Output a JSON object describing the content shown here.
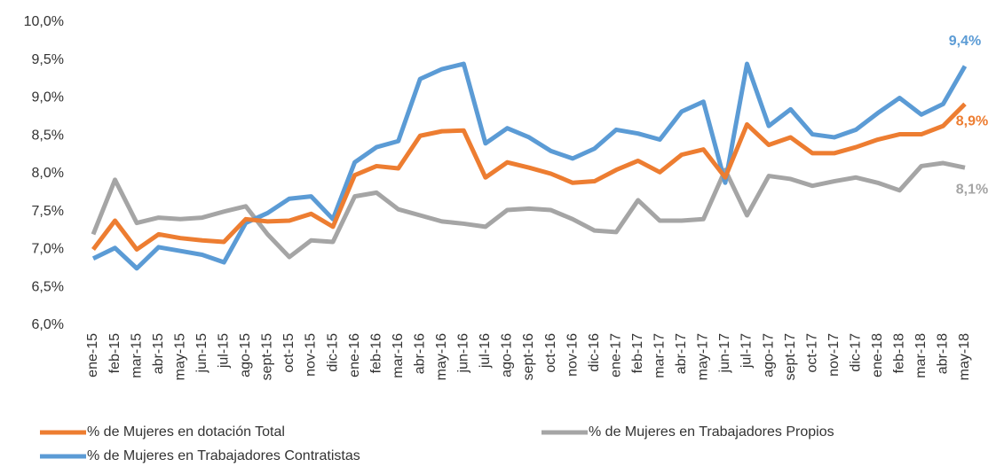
{
  "chart_data": {
    "type": "line",
    "categories": [
      "ene-15",
      "feb-15",
      "mar-15",
      "abr-15",
      "may-15",
      "jun-15",
      "jul-15",
      "ago-15",
      "sept-15",
      "oct-15",
      "nov-15",
      "dic-15",
      "ene-16",
      "feb-16",
      "mar-16",
      "abr-16",
      "may-16",
      "jun-16",
      "jul-16",
      "ago-16",
      "sept-16",
      "oct-16",
      "nov-16",
      "dic-16",
      "ene-17",
      "feb-17",
      "mar-17",
      "abr-17",
      "may-17",
      "jun-17",
      "jul-17",
      "ago-17",
      "sept-17",
      "oct-17",
      "nov-17",
      "dic-17",
      "ene-18",
      "feb-18",
      "mar-18",
      "abr-18",
      "may-18"
    ],
    "series": [
      {
        "name": "% de Mujeres en Trabajadores Propios",
        "color": "#a5a5a5",
        "values": [
          7.2,
          7.92,
          7.35,
          7.42,
          7.4,
          7.42,
          7.5,
          7.57,
          7.2,
          6.9,
          7.12,
          7.1,
          7.7,
          7.75,
          7.53,
          7.45,
          7.37,
          7.34,
          7.3,
          7.52,
          7.54,
          7.52,
          7.4,
          7.25,
          7.23,
          7.65,
          7.38,
          7.38,
          7.4,
          8.05,
          7.45,
          7.97,
          7.93,
          7.84,
          7.9,
          7.95,
          7.88,
          7.78,
          8.1,
          8.14,
          8.08
        ],
        "value_labels": [
          null,
          null,
          null,
          null,
          null,
          null,
          null,
          null,
          null,
          null,
          null,
          null,
          null,
          null,
          null,
          null,
          null,
          null,
          null,
          null,
          null,
          null,
          null,
          null,
          null,
          null,
          null,
          null,
          null,
          null,
          null,
          null,
          null,
          null,
          null,
          null,
          null,
          null,
          null,
          null,
          "8,1%"
        ]
      },
      {
        "name": "% de Mujeres en Trabajadores Contratistas",
        "color": "#5b9bd5",
        "values": [
          6.88,
          7.02,
          6.75,
          7.03,
          6.98,
          6.93,
          6.83,
          7.35,
          7.48,
          7.67,
          7.7,
          7.4,
          8.15,
          8.35,
          8.43,
          9.25,
          9.38,
          9.45,
          8.4,
          8.6,
          8.48,
          8.3,
          8.2,
          8.33,
          8.58,
          8.53,
          8.45,
          8.82,
          8.95,
          7.88,
          9.45,
          8.63,
          8.85,
          8.52,
          8.48,
          8.58,
          8.8,
          9.0,
          8.78,
          8.92,
          9.42
        ],
        "value_labels": [
          null,
          null,
          null,
          null,
          null,
          null,
          null,
          null,
          null,
          null,
          null,
          null,
          null,
          null,
          null,
          null,
          null,
          null,
          null,
          null,
          null,
          null,
          null,
          null,
          null,
          null,
          null,
          null,
          null,
          null,
          null,
          null,
          null,
          null,
          null,
          null,
          null,
          null,
          null,
          null,
          "9,4%"
        ]
      },
      {
        "name": "% de Mujeres en dotación Total",
        "color": "#ed7d31",
        "values": [
          7.0,
          7.38,
          7.0,
          7.2,
          7.15,
          7.12,
          7.1,
          7.4,
          7.37,
          7.38,
          7.47,
          7.3,
          7.98,
          8.1,
          8.07,
          8.5,
          8.56,
          8.57,
          7.95,
          8.15,
          8.08,
          8.0,
          7.88,
          7.9,
          8.05,
          8.17,
          8.02,
          8.25,
          8.32,
          7.95,
          8.65,
          8.38,
          8.48,
          8.27,
          8.27,
          8.35,
          8.45,
          8.52,
          8.52,
          8.63,
          8.92
        ],
        "value_labels": [
          null,
          null,
          null,
          null,
          null,
          null,
          null,
          null,
          null,
          null,
          null,
          null,
          null,
          null,
          null,
          null,
          null,
          null,
          null,
          null,
          null,
          null,
          null,
          null,
          null,
          null,
          null,
          null,
          null,
          null,
          null,
          null,
          null,
          null,
          null,
          null,
          null,
          null,
          null,
          null,
          "8,9%"
        ]
      }
    ],
    "ylim": [
      6,
      10
    ],
    "yticks": [
      {
        "value": 6,
        "label": "6,0%"
      },
      {
        "value": 6.5,
        "label": "6,5%"
      },
      {
        "value": 7,
        "label": "7,0%"
      },
      {
        "value": 7.5,
        "label": "7,5%"
      },
      {
        "value": 8,
        "label": "8,0%"
      },
      {
        "value": 8.5,
        "label": "8,5%"
      },
      {
        "value": 9,
        "label": "9,0%"
      },
      {
        "value": 9.5,
        "label": "9,5%"
      },
      {
        "value": 10,
        "label": "10,0%"
      }
    ],
    "grid": false
  }
}
